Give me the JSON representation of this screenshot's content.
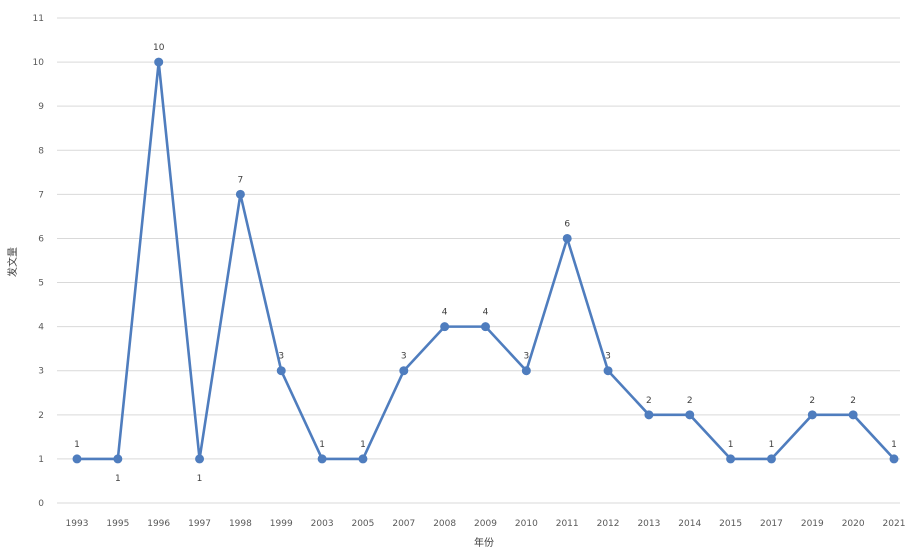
{
  "chart_data": {
    "type": "line",
    "title": "",
    "xlabel": "年份",
    "ylabel": "发文量",
    "ylim": [
      0,
      11
    ],
    "yticks": [
      0,
      1,
      2,
      3,
      4,
      5,
      6,
      7,
      8,
      9,
      10,
      11
    ],
    "grid": true,
    "categories": [
      "1993",
      "1995",
      "1996",
      "1997",
      "1998",
      "1999",
      "2003",
      "2005",
      "2007",
      "2008",
      "2009",
      "2010",
      "2011",
      "2012",
      "2013",
      "2014",
      "2015",
      "2017",
      "2019",
      "2020",
      "2021"
    ],
    "series": [
      {
        "values": [
          1,
          1,
          10,
          1,
          7,
          3,
          1,
          1,
          3,
          4,
          4,
          3,
          6,
          3,
          2,
          2,
          1,
          1,
          2,
          2,
          1
        ],
        "color": "#4f7dbe",
        "label_below": [
          false,
          true,
          false,
          true,
          false,
          false,
          false,
          false,
          false,
          false,
          false,
          false,
          false,
          false,
          false,
          false,
          false,
          false,
          false,
          false,
          false
        ]
      }
    ]
  }
}
